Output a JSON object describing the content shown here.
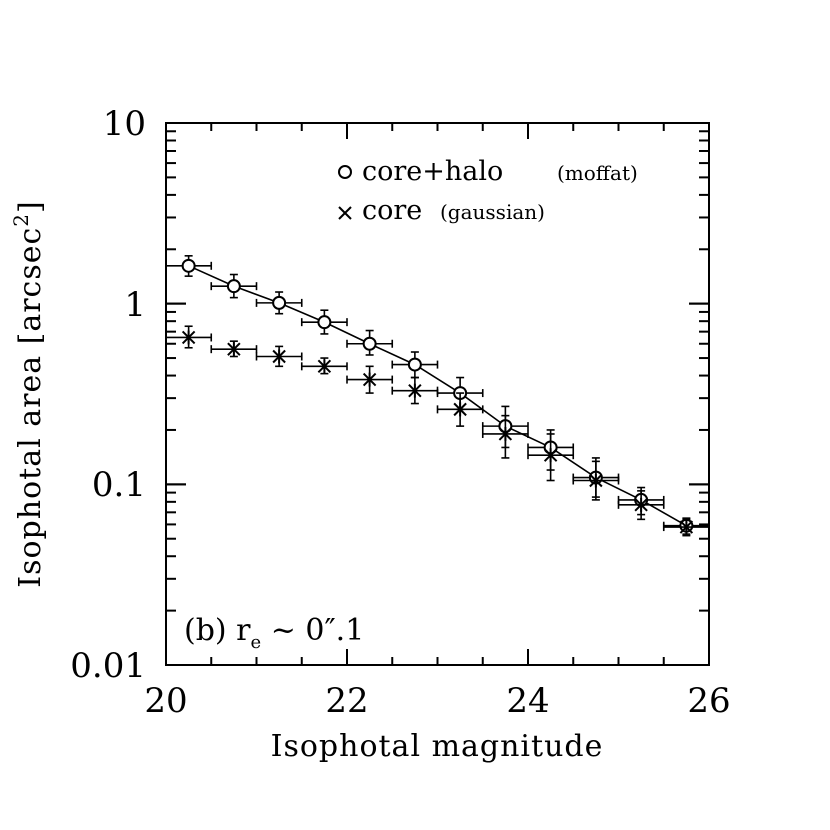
{
  "chart_data": {
    "type": "scatter",
    "xlabel": "Isophotal magnitude",
    "ylabel": "Isophotal area [arcsec",
    "ylabel_sup": "2",
    "ylabel_close": "]",
    "xlim": [
      20,
      26
    ],
    "ylim": [
      0.01,
      10
    ],
    "yscale": "log",
    "x_ticks": [
      20,
      22,
      24,
      26
    ],
    "x_tick_labels": [
      "20",
      "22",
      "24",
      "26"
    ],
    "y_ticks": [
      0.01,
      0.1,
      1,
      10
    ],
    "y_tick_labels": [
      "0.01",
      "0.1",
      "1",
      "10"
    ],
    "annotation": {
      "prefix": "(b) r",
      "subscript": "e",
      "suffix": " ~ 0″.1"
    },
    "legend": {
      "placement": "top-right",
      "entries": [
        {
          "marker": "o",
          "label": "core+halo",
          "detail": "(moffat)"
        },
        {
          "marker": "x",
          "label": "core",
          "detail": "(gaussian)"
        }
      ]
    },
    "series": [
      {
        "name": "core+halo (moffat)",
        "marker": "circle",
        "line": true,
        "x": [
          20.25,
          20.75,
          21.25,
          21.75,
          22.25,
          22.75,
          23.25,
          23.75,
          24.25,
          24.75,
          25.25,
          25.75
        ],
        "y": [
          1.62,
          1.25,
          1.01,
          0.79,
          0.6,
          0.46,
          0.32,
          0.21,
          0.16,
          0.109,
          0.082,
          0.059
        ],
        "y_low": [
          1.42,
          1.08,
          0.88,
          0.68,
          0.52,
          0.39,
          0.26,
          0.16,
          0.12,
          0.085,
          0.068,
          0.053
        ],
        "y_high": [
          1.84,
          1.45,
          1.16,
          0.92,
          0.71,
          0.54,
          0.39,
          0.27,
          0.2,
          0.14,
          0.096,
          0.065
        ],
        "x_err": 0.25
      },
      {
        "name": "core (gaussian)",
        "marker": "asterisk",
        "line": false,
        "x": [
          20.25,
          20.75,
          21.25,
          21.75,
          22.25,
          22.75,
          23.25,
          23.75,
          24.25,
          24.75,
          25.25,
          25.75
        ],
        "y": [
          0.65,
          0.56,
          0.51,
          0.45,
          0.38,
          0.33,
          0.26,
          0.19,
          0.145,
          0.105,
          0.077,
          0.058
        ],
        "y_low": [
          0.57,
          0.51,
          0.45,
          0.41,
          0.32,
          0.28,
          0.21,
          0.14,
          0.105,
          0.082,
          0.064,
          0.052
        ],
        "y_high": [
          0.75,
          0.62,
          0.58,
          0.5,
          0.45,
          0.39,
          0.32,
          0.24,
          0.19,
          0.134,
          0.092,
          0.064
        ],
        "x_err": 0.25
      }
    ]
  }
}
